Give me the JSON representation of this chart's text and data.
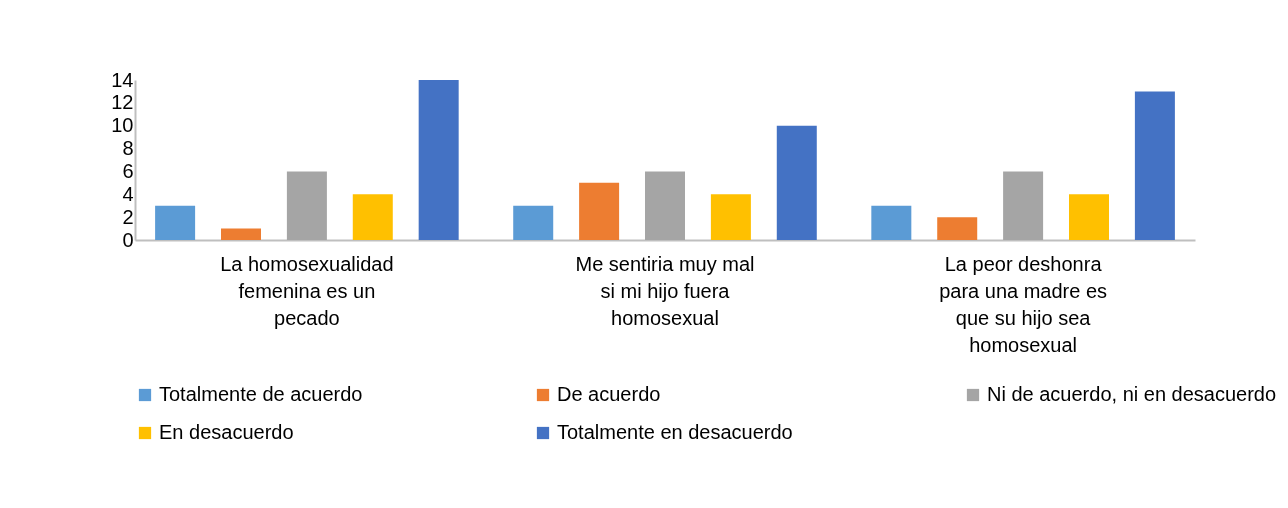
{
  "chart_data": {
    "type": "bar",
    "categories": [
      "La homosexualidad femenina es un pecado",
      "Me sentiria muy mal si mi hijo fuera homosexual",
      "La peor deshonra para una madre es que su hijo sea homosexual"
    ],
    "series": [
      {
        "name": "Totalmente de acuerdo",
        "color": "#5b9bd5",
        "values": [
          3,
          3,
          3
        ]
      },
      {
        "name": "De acuerdo",
        "color": "#ed7d31",
        "values": [
          1,
          5,
          2
        ]
      },
      {
        "name": "Ni de acuerdo, ni en desacuerdo",
        "color": "#a5a5a5",
        "values": [
          6,
          6,
          6
        ]
      },
      {
        "name": "En desacuerdo",
        "color": "#ffc000",
        "values": [
          4,
          4,
          4
        ]
      },
      {
        "name": "Totalmente en desacuerdo",
        "color": "#4472c4",
        "values": [
          14,
          10,
          13
        ]
      }
    ],
    "ylim": [
      0,
      14
    ],
    "yticks": [
      0,
      2,
      4,
      6,
      8,
      10,
      12,
      14
    ],
    "grid": false,
    "legend": "bottom"
  }
}
